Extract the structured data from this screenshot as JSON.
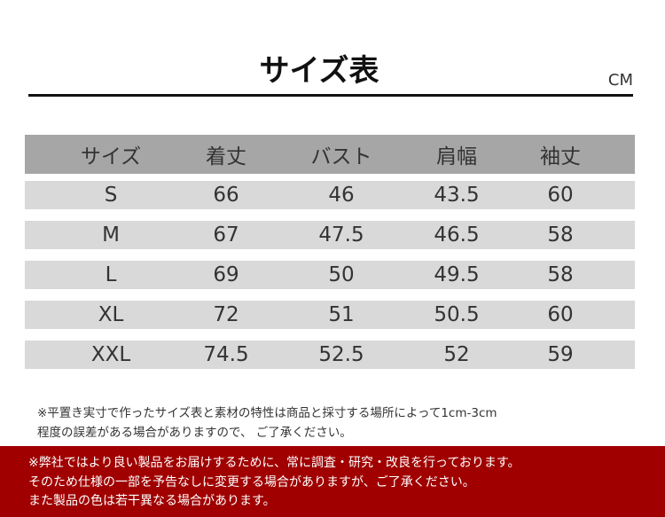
{
  "title": "サイズ表",
  "unit": "CM",
  "table": {
    "headers": [
      "サイズ",
      "着丈",
      "バスト",
      "肩幅",
      "袖丈"
    ],
    "rows": [
      [
        "S",
        "66",
        "46",
        "43.5",
        "60"
      ],
      [
        "M",
        "67",
        "47.5",
        "46.5",
        "58"
      ],
      [
        "L",
        "69",
        "50",
        "49.5",
        "58"
      ],
      [
        "XL",
        "72",
        "51",
        "50.5",
        "60"
      ],
      [
        "XXL",
        "74.5",
        "52.5",
        "52",
        "59"
      ]
    ]
  },
  "note": [
    "※平置き実寸で作ったサイズ表と素材の特性は商品と採寸する場所によって1cm-3cm",
    "程度の誤差がある場合がありますので、 ご了承ください。"
  ],
  "notice": [
    "※弊社ではより良い製品をお届けするために、常に調査・研究・改良を行っております。",
    "そのため仕様の一部を予告なしに変更する場合がありますが、ご了承ください。",
    "また製品の色は若干異なる場合があります。"
  ],
  "colors": {
    "header_bg": "#a6a6a6",
    "row_bg": "#d9d9d9",
    "notice_bg": "#a00000"
  }
}
